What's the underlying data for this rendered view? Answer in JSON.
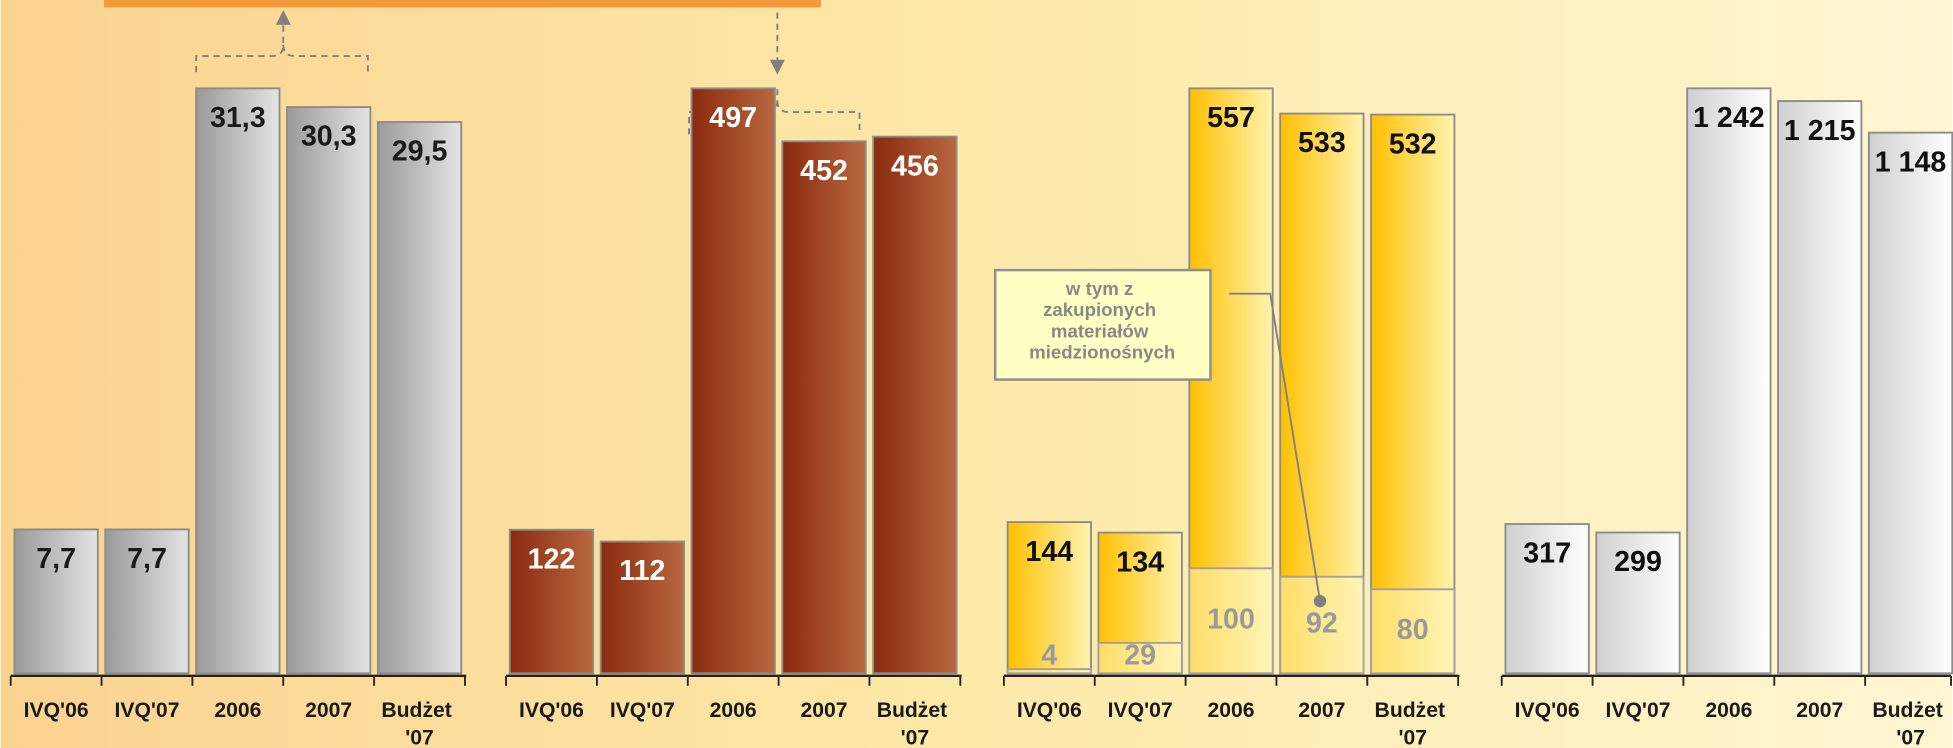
{
  "chart_data": [
    {
      "type": "bar",
      "categories": [
        "IVQ'06",
        "IVQ'07",
        "2006",
        "2007",
        "Budżet '07"
      ],
      "values": [
        7.7,
        7.7,
        31.3,
        30.3,
        29.5
      ],
      "value_labels": [
        "7,7",
        "7,7",
        "31,3",
        "30,3",
        "29,5"
      ],
      "color": "#9a9a9a"
    },
    {
      "type": "bar",
      "categories": [
        "IVQ'06",
        "IVQ'07",
        "2006",
        "2007",
        "Budżet '07"
      ],
      "values": [
        122,
        112,
        497,
        452,
        456
      ],
      "color": "#8a2a0e"
    },
    {
      "type": "bar",
      "categories": [
        "IVQ'06",
        "IVQ'07",
        "2006",
        "2007",
        "Budżet '07"
      ],
      "values": [
        144,
        134,
        557,
        533,
        532
      ],
      "inner_values": [
        4,
        29,
        100,
        92,
        80
      ],
      "color": "#ffc000",
      "annotation": "w tym z zakupionych materiałów miedzionośnych"
    },
    {
      "type": "bar",
      "categories": [
        "IVQ'06",
        "IVQ'07",
        "2006",
        "2007",
        "Budżet '07"
      ],
      "values": [
        317,
        299,
        1242,
        1215,
        1148
      ],
      "value_labels": [
        "317",
        "299",
        "1 242",
        "1 215",
        "1 148"
      ],
      "color": "#d0d0d0"
    }
  ]
}
